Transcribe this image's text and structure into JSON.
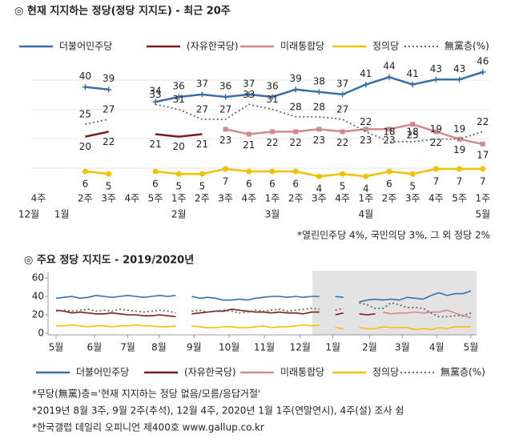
{
  "chart_data": [
    {
      "type": "line",
      "title": "◎  현재 지지하는 정당(정당 지지도) - 최근 20주",
      "categories": [
        "4주",
        null,
        "2주",
        "3주",
        "4주",
        "5주",
        "1주",
        "2주",
        "3주",
        "4주",
        "1주",
        "2주",
        "3주",
        "4주",
        "1주",
        "2주",
        "3주",
        "4주",
        "5주",
        "1주"
      ],
      "months": [
        "12월",
        "1월",
        null,
        null,
        null,
        null,
        "2월",
        null,
        null,
        null,
        "3월",
        null,
        null,
        null,
        "4월",
        null,
        null,
        null,
        null,
        "5월"
      ],
      "series": [
        {
          "name": "더불어민주당",
          "color": "#3a6ea8",
          "marker": "plus",
          "dash": false,
          "values": [
            null,
            null,
            40,
            39,
            null,
            34,
            36,
            37,
            36,
            37,
            36,
            39,
            38,
            37,
            41,
            44,
            41,
            43,
            43,
            46
          ]
        },
        {
          "name": "(자유한국당)",
          "color": "#7a1c1c",
          "marker": null,
          "dash": false,
          "values": [
            null,
            null,
            20,
            22,
            null,
            21,
            20,
            21,
            null,
            null,
            null,
            null,
            null,
            null,
            null,
            null,
            null,
            null,
            null,
            null
          ]
        },
        {
          "name": "미래통합당",
          "color": "#d48a8a",
          "marker": "square",
          "dash": false,
          "values": [
            null,
            null,
            null,
            null,
            null,
            null,
            null,
            null,
            23,
            21,
            22,
            22,
            23,
            22,
            23,
            23,
            25,
            22,
            19,
            17
          ]
        },
        {
          "name": "정의당",
          "color": "#f2c200",
          "marker": "circle",
          "dash": false,
          "values": [
            null,
            null,
            6,
            5,
            null,
            6,
            5,
            5,
            7,
            6,
            6,
            6,
            4,
            5,
            4,
            6,
            5,
            7,
            7,
            7
          ]
        },
        {
          "name": "無黨층(%)",
          "color": "#666666",
          "marker": null,
          "dash": true,
          "values": [
            null,
            null,
            25,
            27,
            null,
            33,
            31,
            27,
            27,
            33,
            31,
            28,
            28,
            27,
            22,
            18,
            18,
            19,
            19,
            22
          ]
        }
      ],
      "note": "*열린민주당 4%, 국민의당 3%, 그 외 정당 2%"
    },
    {
      "type": "line",
      "title": "◎  주요 정당 지지도 - 2019/2020년",
      "x": [
        0,
        1,
        2,
        3,
        4,
        5,
        6,
        7,
        8,
        9,
        10,
        11,
        12,
        13,
        14,
        15,
        16,
        17,
        18,
        19,
        20,
        21,
        22,
        23,
        24,
        25,
        26,
        27,
        28,
        29,
        30,
        31,
        32,
        33,
        34,
        35,
        36,
        37,
        38,
        39,
        40,
        41,
        42,
        43,
        44,
        45,
        46,
        47,
        48,
        49,
        50,
        51,
        52
      ],
      "xlim": [
        0,
        52
      ],
      "xticks": [
        {
          "value": 0,
          "label": "5월"
        },
        {
          "value": 4.8,
          "label": "6월"
        },
        {
          "value": 9,
          "label": "7월"
        },
        {
          "value": 12.9,
          "label": "8월"
        },
        {
          "value": 17.3,
          "label": "9월"
        },
        {
          "value": 21.7,
          "label": "10월"
        },
        {
          "value": 26.1,
          "label": "11월"
        },
        {
          "value": 30.6,
          "label": "12월"
        },
        {
          "value": 34.7,
          "label": "1월"
        },
        {
          "value": 39.3,
          "label": "2월"
        },
        {
          "value": 43.4,
          "label": "3월"
        },
        {
          "value": 47.7,
          "label": "4월"
        },
        {
          "value": 52,
          "label": "5월"
        }
      ],
      "ylim": [
        0,
        60
      ],
      "yticks": [
        0,
        20,
        40,
        60
      ],
      "series": [
        {
          "name": "더불어민주당",
          "color": "#3a6ea8",
          "dash": false,
          "values": [
            38,
            39,
            40,
            38,
            39,
            41,
            40,
            39,
            40,
            41,
            40,
            39,
            40,
            41,
            40,
            41,
            null,
            40,
            38,
            39,
            38,
            36,
            36,
            37,
            36,
            38,
            39,
            40,
            40,
            39,
            40,
            39,
            40,
            40,
            null,
            40,
            39,
            null,
            34,
            36,
            37,
            36,
            37,
            36,
            39,
            38,
            37,
            41,
            44,
            41,
            43,
            43,
            46
          ]
        },
        {
          "name": "(자유한국당)",
          "color": "#7a1c1c",
          "dash": false,
          "values": [
            25,
            24,
            22,
            23,
            22,
            21,
            21,
            22,
            21,
            20,
            20,
            19,
            19,
            20,
            19,
            18,
            null,
            21,
            22,
            23,
            24,
            24,
            26,
            25,
            24,
            23,
            23,
            22,
            23,
            22,
            22,
            21,
            23,
            23,
            null,
            20,
            22,
            null,
            21,
            20,
            21,
            null,
            null,
            null,
            null,
            null,
            null,
            null,
            null,
            null,
            null,
            null,
            null
          ]
        },
        {
          "name": "미래통합당",
          "color": "#d48a8a",
          "dash": false,
          "values": [
            null,
            null,
            null,
            null,
            null,
            null,
            null,
            null,
            null,
            null,
            null,
            null,
            null,
            null,
            null,
            null,
            null,
            null,
            null,
            null,
            null,
            null,
            null,
            null,
            null,
            null,
            null,
            null,
            null,
            null,
            null,
            null,
            null,
            null,
            null,
            null,
            null,
            null,
            null,
            null,
            null,
            23,
            21,
            22,
            22,
            23,
            22,
            23,
            23,
            25,
            22,
            19,
            17
          ]
        },
        {
          "name": "정의당",
          "color": "#f2c200",
          "dash": false,
          "values": [
            8,
            8,
            9,
            8,
            7,
            8,
            8,
            7,
            8,
            8,
            9,
            8,
            8,
            7,
            7,
            8,
            null,
            8,
            7,
            6,
            6,
            7,
            7,
            6,
            6,
            7,
            8,
            6,
            7,
            7,
            8,
            9,
            8,
            9,
            null,
            6,
            5,
            null,
            6,
            5,
            5,
            7,
            6,
            6,
            6,
            4,
            5,
            4,
            6,
            5,
            7,
            7,
            7
          ]
        },
        {
          "name": "無黨층(%)",
          "color": "#666666",
          "dash": true,
          "values": [
            24,
            25,
            24,
            25,
            26,
            24,
            25,
            24,
            26,
            25,
            24,
            23,
            24,
            25,
            24,
            22,
            null,
            24,
            25,
            23,
            24,
            25,
            24,
            22,
            23,
            25,
            24,
            25,
            26,
            24,
            25,
            26,
            27,
            26,
            null,
            25,
            27,
            null,
            33,
            31,
            27,
            27,
            33,
            31,
            28,
            28,
            27,
            22,
            18,
            18,
            19,
            19,
            22
          ]
        }
      ]
    }
  ],
  "footnotes": [
    "*무당(無黨)층='현재 지지하는 정당 없음/모름/응답거절'",
    "*2019년 8월 3주, 9월 2주(추석), 12월 4주, 2020년 1월 1주(연말연시), 4주(설) 조사 쉼",
    "*한국갤럽 데일리 오피니언 제400호 www.gallup.co.kr"
  ]
}
